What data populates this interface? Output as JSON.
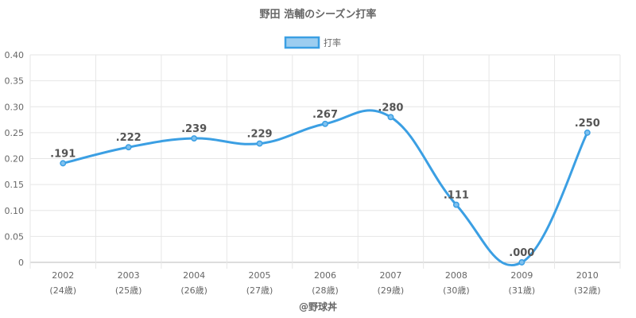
{
  "chart_data": {
    "type": "line",
    "title": "野田 浩輔のシーズン打率",
    "legend": {
      "label": "打率",
      "position": "top"
    },
    "categories": [
      "2002",
      "2003",
      "2004",
      "2005",
      "2006",
      "2007",
      "2008",
      "2009",
      "2010"
    ],
    "category_sublabels": [
      "(24歳)",
      "(25歳)",
      "(26歳)",
      "(27歳)",
      "(28歳)",
      "(29歳)",
      "(30歳)",
      "(31歳)",
      "(32歳)"
    ],
    "series": [
      {
        "name": "打率",
        "values": [
          0.191,
          0.222,
          0.239,
          0.229,
          0.267,
          0.28,
          0.111,
          0.0,
          0.25
        ],
        "data_labels": [
          ".191",
          ".222",
          ".239",
          ".229",
          ".267",
          ".280",
          ".111",
          ".000",
          ".250"
        ],
        "color": "#3b9fe3"
      }
    ],
    "ylim": [
      0,
      0.4
    ],
    "yticks": [
      "0",
      "0.05",
      "0.10",
      "0.15",
      "0.20",
      "0.25",
      "0.30",
      "0.35",
      "0.40"
    ],
    "xlabel": "",
    "ylabel": "",
    "grid": true,
    "credit": "@野球丼"
  }
}
